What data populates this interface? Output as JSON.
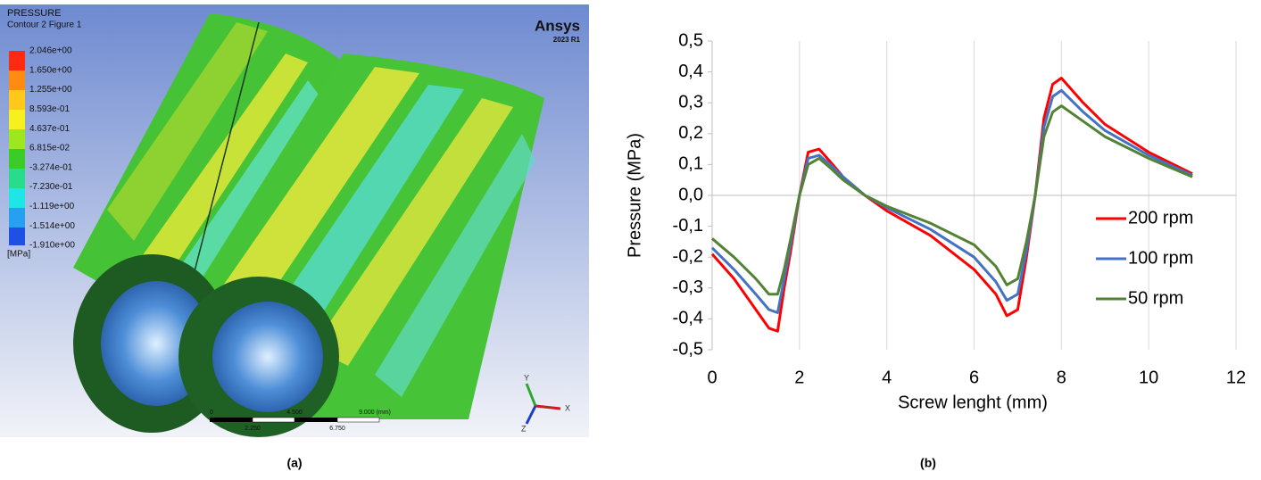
{
  "panel_a": {
    "title": "PRESSURE",
    "subtitle": "Contour 2 Figure 1",
    "levels": [
      "2.046e+00",
      "1.650e+00",
      "1.255e+00",
      "8.593e-01",
      "4.637e-01",
      "6.815e-02",
      "-3.274e-01",
      "-7.230e-01",
      "-1.119e+00",
      "-1.514e+00",
      "-1.910e+00"
    ],
    "unit": "[MPa]",
    "brand": "Ansys",
    "version": "2023 R1",
    "scale_top": [
      "0",
      "4.500",
      "9.000 (mm)"
    ],
    "scale_bottom": [
      "2.250",
      "6.750"
    ],
    "axes": [
      "Y",
      "X",
      "Z"
    ],
    "caption": "(a)"
  },
  "chart_data": {
    "type": "line",
    "xlabel": "Screw lenght (mm)",
    "ylabel": "Pressure (MPa)",
    "caption": "(b)",
    "x": [
      0,
      0.5,
      1,
      1.3,
      1.5,
      1.65,
      1.8,
      2,
      2.2,
      2.45,
      2.7,
      3,
      3.5,
      4,
      5,
      6,
      6.5,
      6.75,
      7,
      7.2,
      7.4,
      7.6,
      7.8,
      8,
      8.5,
      9,
      10,
      11
    ],
    "series": [
      {
        "name": "200 rpm",
        "color": "#ff0000",
        "values": [
          -0.19,
          -0.27,
          -0.37,
          -0.43,
          -0.44,
          -0.3,
          -0.18,
          0.0,
          0.14,
          0.15,
          0.11,
          0.06,
          0.0,
          -0.05,
          -0.13,
          -0.24,
          -0.32,
          -0.39,
          -0.37,
          -0.2,
          0.0,
          0.25,
          0.36,
          0.38,
          0.3,
          0.23,
          0.14,
          0.07
        ]
      },
      {
        "name": "100 rpm",
        "color": "#4472c4",
        "values": [
          -0.17,
          -0.24,
          -0.32,
          -0.37,
          -0.38,
          -0.27,
          -0.16,
          0.0,
          0.12,
          0.13,
          0.1,
          0.06,
          0.0,
          -0.04,
          -0.11,
          -0.2,
          -0.28,
          -0.34,
          -0.32,
          -0.18,
          0.0,
          0.22,
          0.32,
          0.34,
          0.27,
          0.21,
          0.13,
          0.065
        ]
      },
      {
        "name": "50 rpm",
        "color": "#548235",
        "values": [
          -0.14,
          -0.2,
          -0.27,
          -0.32,
          -0.32,
          -0.24,
          -0.14,
          0.0,
          0.1,
          0.12,
          0.09,
          0.05,
          0.0,
          -0.035,
          -0.09,
          -0.16,
          -0.23,
          -0.29,
          -0.27,
          -0.15,
          0.0,
          0.19,
          0.27,
          0.29,
          0.24,
          0.19,
          0.12,
          0.06
        ]
      }
    ],
    "xlim": [
      0,
      12
    ],
    "xticks": [
      0,
      2,
      4,
      6,
      8,
      10,
      12
    ],
    "ylim": [
      -0.5,
      0.5
    ],
    "yticks": [
      {
        "value": -0.5,
        "label": "-0,5"
      },
      {
        "value": -0.4,
        "label": "-0,4"
      },
      {
        "value": -0.3,
        "label": "-0,3"
      },
      {
        "value": -0.2,
        "label": "-0,2"
      },
      {
        "value": -0.1,
        "label": "-0,1"
      },
      {
        "value": 0,
        "label": "0,0"
      },
      {
        "value": 0.1,
        "label": "0,1"
      },
      {
        "value": 0.2,
        "label": "0,2"
      },
      {
        "value": 0.3,
        "label": "0,3"
      },
      {
        "value": 0.4,
        "label": "0,4"
      },
      {
        "value": 0.5,
        "label": "0,5"
      }
    ],
    "grid": "x",
    "legend": "right"
  }
}
